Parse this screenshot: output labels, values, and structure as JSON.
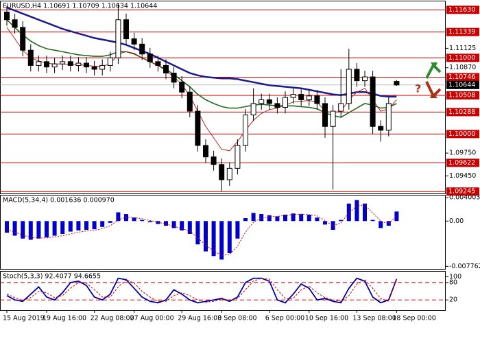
{
  "chart_data": [
    {
      "type": "candlestick",
      "title": "EURUSD,H4  1.10691 1.10709 1.10634 1.10644",
      "categories": [
        "15 Aug 2019",
        null,
        null,
        null,
        null,
        "19 Aug 16:00",
        null,
        null,
        null,
        null,
        null,
        "22 Aug 08:00",
        null,
        null,
        null,
        null,
        "27 Aug 00:00",
        null,
        null,
        null,
        null,
        null,
        "29 Aug 16:00",
        null,
        null,
        null,
        null,
        "3 Sep 08:00",
        null,
        null,
        null,
        null,
        null,
        "6 Sep 00:00",
        null,
        null,
        null,
        null,
        "10 Sep 16:00",
        null,
        null,
        null,
        null,
        null,
        "13 Sep 08:00",
        null,
        null,
        null,
        null,
        "18 Sep 00:00"
      ],
      "open": [
        1.116,
        1.115,
        1.114,
        1.111,
        1.109,
        1.1095,
        1.1088,
        1.1092,
        1.1095,
        1.109,
        1.1093,
        1.1088,
        1.1085,
        1.109,
        1.11,
        1.115,
        1.1125,
        1.1118,
        1.1105,
        1.1095,
        1.109,
        1.108,
        1.1068,
        1.1055,
        1.103,
        1.0985,
        1.097,
        1.096,
        1.094,
        1.0955,
        1.0985,
        1.1025,
        1.104,
        1.1045,
        1.104,
        1.1035,
        1.1048,
        1.1052,
        1.1045,
        1.105,
        1.104,
        1.101,
        1.103,
        1.104,
        1.1085,
        1.107,
        1.1075,
        1.101,
        1.1005,
        1.10691
      ],
      "high": [
        1.1168,
        1.1158,
        1.1148,
        1.1118,
        1.1103,
        1.1103,
        1.11,
        1.1103,
        1.1103,
        1.1101,
        1.1101,
        1.1096,
        1.1098,
        1.1108,
        1.1172,
        1.1158,
        1.1133,
        1.1126,
        1.1113,
        1.1103,
        1.1098,
        1.1088,
        1.1076,
        1.1063,
        1.1038,
        1.0993,
        1.0978,
        1.0968,
        1.0963,
        1.0993,
        1.1033,
        1.106,
        1.1053,
        1.1053,
        1.1048,
        1.1056,
        1.106,
        1.106,
        1.1058,
        1.1058,
        1.1048,
        1.1038,
        1.1085,
        1.1112,
        1.1093,
        1.1083,
        1.1083,
        1.1018,
        1.1048,
        1.10709
      ],
      "low": [
        1.1142,
        1.1132,
        1.1102,
        1.1082,
        1.1082,
        1.108,
        1.108,
        1.1084,
        1.1082,
        1.1082,
        1.108,
        1.1077,
        1.1077,
        1.1082,
        1.1092,
        1.1117,
        1.111,
        1.1097,
        1.1087,
        1.1082,
        1.1072,
        1.106,
        1.1047,
        1.1022,
        1.0977,
        1.0962,
        1.0952,
        1.0925,
        1.0932,
        1.0947,
        1.0977,
        1.1017,
        1.1032,
        1.1032,
        1.1027,
        1.1027,
        1.104,
        1.1037,
        1.1037,
        1.1032,
        1.0995,
        1.0927,
        1.1022,
        1.1032,
        1.1062,
        1.1062,
        1.1,
        1.099,
        1.0997,
        1.10634
      ],
      "close": [
        1.115,
        1.114,
        1.111,
        1.109,
        1.1095,
        1.1088,
        1.1092,
        1.1095,
        1.109,
        1.1093,
        1.1088,
        1.1085,
        1.109,
        1.11,
        1.115,
        1.1125,
        1.1118,
        1.1105,
        1.1095,
        1.109,
        1.108,
        1.1068,
        1.1055,
        1.103,
        1.0985,
        1.097,
        1.096,
        1.094,
        1.0955,
        1.0985,
        1.1025,
        1.104,
        1.1045,
        1.104,
        1.1035,
        1.1048,
        1.1052,
        1.1045,
        1.105,
        1.104,
        1.101,
        1.103,
        1.104,
        1.1085,
        1.107,
        1.1075,
        1.101,
        1.1005,
        1.104,
        1.10644
      ],
      "up_color": "#ffffff",
      "down_color": "#000000",
      "series": [
        {
          "color": "#1c1c8c",
          "values": [
            1.1166,
            1.1162,
            1.1158,
            1.1154,
            1.115,
            1.1146,
            1.1142,
            1.1138,
            1.1135,
            1.1132,
            1.1129,
            1.1126,
            1.1124,
            1.1122,
            1.112,
            1.1117,
            1.1113,
            1.1109,
            1.1105,
            1.11,
            1.1095,
            1.109,
            1.1085,
            1.108,
            1.1077,
            1.1075,
            1.1074,
            1.1073,
            1.1073,
            1.1072,
            1.107,
            1.1068,
            1.1066,
            1.1064,
            1.1063,
            1.1062,
            1.1061,
            1.106,
            1.1058,
            1.1056,
            1.1054,
            1.1052,
            1.1051,
            1.1053,
            1.1055,
            1.1055,
            1.1053,
            1.105,
            1.1049,
            1.1049
          ]
        },
        {
          "color": "#1e6b1e",
          "values": [
            1.115,
            1.114,
            1.113,
            1.1122,
            1.1116,
            1.1112,
            1.111,
            1.1108,
            1.1106,
            1.1104,
            1.1103,
            1.1102,
            1.1102,
            1.1104,
            1.1108,
            1.1108,
            1.1105,
            1.11,
            1.1095,
            1.109,
            1.1085,
            1.1078,
            1.107,
            1.1062,
            1.1052,
            1.1045,
            1.104,
            1.1036,
            1.1034,
            1.1034,
            1.1036,
            1.1038,
            1.1039,
            1.1038,
            1.1037,
            1.1037,
            1.1037,
            1.1036,
            1.1035,
            1.1033,
            1.1028,
            1.1024,
            1.1022,
            1.1028,
            1.1034,
            1.104,
            1.1038,
            1.1034,
            1.1035,
            1.104
          ]
        },
        {
          "color": "#b22222",
          "values": [
            1.114,
            1.1125,
            1.111,
            1.11,
            1.1096,
            1.1093,
            1.1092,
            1.1092,
            1.1091,
            1.1091,
            1.109,
            1.1089,
            1.1089,
            1.1092,
            1.1105,
            1.1108,
            1.1106,
            1.11,
            1.1095,
            1.109,
            1.1083,
            1.1075,
            1.1065,
            1.105,
            1.103,
            1.101,
            1.0995,
            1.098,
            1.0978,
            1.099,
            1.1005,
            1.1018,
            1.1027,
            1.1032,
            1.1034,
            1.1038,
            1.1042,
            1.1043,
            1.1044,
            1.1042,
            1.103,
            1.1028,
            1.103,
            1.1045,
            1.1055,
            1.106,
            1.1045,
            1.103,
            1.1033,
            1.1045
          ]
        }
      ],
      "ylim": [
        1.0922,
        1.1175
      ],
      "yticks": [
        {
          "value": 1.11125,
          "label": "1.11125"
        },
        {
          "value": 1.1087,
          "label": "1.10870"
        },
        {
          "value": 1.0975,
          "label": "1.09750"
        },
        {
          "value": 1.0945,
          "label": "1.09450"
        }
      ],
      "levels": [
        {
          "value": 1.1163,
          "label": "1.11630"
        },
        {
          "value": 1.11339,
          "label": "1.11339"
        },
        {
          "value": 1.11,
          "label": "1.11000"
        },
        {
          "value": 1.10746,
          "label": "1.10746"
        },
        {
          "value": 1.10508,
          "label": "1.10508"
        },
        {
          "value": 1.10288,
          "label": "1.10288"
        },
        {
          "value": 1.1,
          "label": "1.10000"
        },
        {
          "value": 1.09622,
          "label": "1.09622"
        },
        {
          "value": 1.09245,
          "label": "1.09245"
        }
      ],
      "level_color": "#cc0000",
      "last_price": {
        "value": 1.10644,
        "label": "1.10644"
      },
      "annotation": "?"
    },
    {
      "type": "bar",
      "title": "MACD(5,34,4) 0.001636 0.000970",
      "values": [
        -0.002,
        -0.0025,
        -0.003,
        -0.0032,
        -0.003,
        -0.0028,
        -0.0025,
        -0.0022,
        -0.0018,
        -0.0016,
        -0.0015,
        -0.0014,
        -0.001,
        -0.0003,
        0.0015,
        0.0012,
        0.0006,
        0.0002,
        -0.0002,
        -0.0005,
        -0.0008,
        -0.0012,
        -0.0016,
        -0.0022,
        -0.004,
        -0.0052,
        -0.006,
        -0.0066,
        -0.0055,
        -0.003,
        0.0005,
        0.0014,
        0.0012,
        0.001,
        0.0008,
        0.0011,
        0.0013,
        0.0012,
        0.0011,
        0.0006,
        -0.0006,
        -0.0015,
        0.0002,
        0.003,
        0.0036,
        0.003,
        0.0002,
        -0.0012,
        -0.0008,
        0.001636
      ],
      "color": "#0000cc",
      "line": {
        "color": "#cc0000",
        "values": [
          -0.0015,
          -0.0019,
          -0.0024,
          -0.0028,
          -0.0029,
          -0.0029,
          -0.0027,
          -0.0025,
          -0.0022,
          -0.0019,
          -0.0017,
          -0.0016,
          -0.0013,
          -0.0008,
          0.0002,
          0.0007,
          0.0006,
          0.0004,
          0.0001,
          -0.0002,
          -0.0005,
          -0.0009,
          -0.0013,
          -0.0017,
          -0.0029,
          -0.0041,
          -0.0051,
          -0.0059,
          -0.0057,
          -0.0043,
          -0.0019,
          -0.0002,
          0.0005,
          0.0008,
          0.0008,
          0.001,
          0.0011,
          0.0012,
          0.0011,
          0.0009,
          0.0001,
          -0.0008,
          -0.0003,
          0.0014,
          0.0026,
          0.0028,
          0.0014,
          0.0,
          -0.0005,
          0.00097
        ]
      },
      "ylim": [
        -0.0082,
        0.0045
      ],
      "yticks": [
        {
          "value": 0.004003,
          "label": "0.004003"
        },
        {
          "value": 0,
          "label": "0.00"
        },
        {
          "value": -0.007762,
          "label": "-0.007762"
        }
      ]
    },
    {
      "type": "line",
      "title": "Stoch(5,3,3) 92.4077 94.6655",
      "series": [
        {
          "color": "#0000aa",
          "values": [
            35,
            20,
            15,
            40,
            65,
            30,
            20,
            45,
            80,
            85,
            70,
            30,
            20,
            40,
            95,
            90,
            60,
            30,
            15,
            10,
            20,
            55,
            40,
            20,
            10,
            15,
            20,
            25,
            15,
            30,
            80,
            95,
            95,
            85,
            20,
            10,
            40,
            75,
            60,
            20,
            25,
            15,
            10,
            60,
            95,
            85,
            30,
            10,
            20,
            92.4077
          ]
        },
        {
          "color": "#cc0000",
          "dash": true,
          "values": [
            40,
            28,
            18,
            28,
            50,
            45,
            28,
            35,
            60,
            80,
            78,
            55,
            30,
            30,
            65,
            90,
            78,
            50,
            30,
            15,
            15,
            35,
            45,
            35,
            20,
            12,
            15,
            22,
            20,
            25,
            55,
            85,
            95,
            92,
            55,
            25,
            25,
            55,
            68,
            45,
            28,
            20,
            15,
            35,
            75,
            90,
            60,
            25,
            15,
            94.6655
          ]
        }
      ],
      "ylim": [
        -15,
        120
      ],
      "yticks": [
        100,
        80,
        20
      ],
      "levels": [
        80,
        20
      ],
      "level_color": "#cc0000"
    }
  ]
}
